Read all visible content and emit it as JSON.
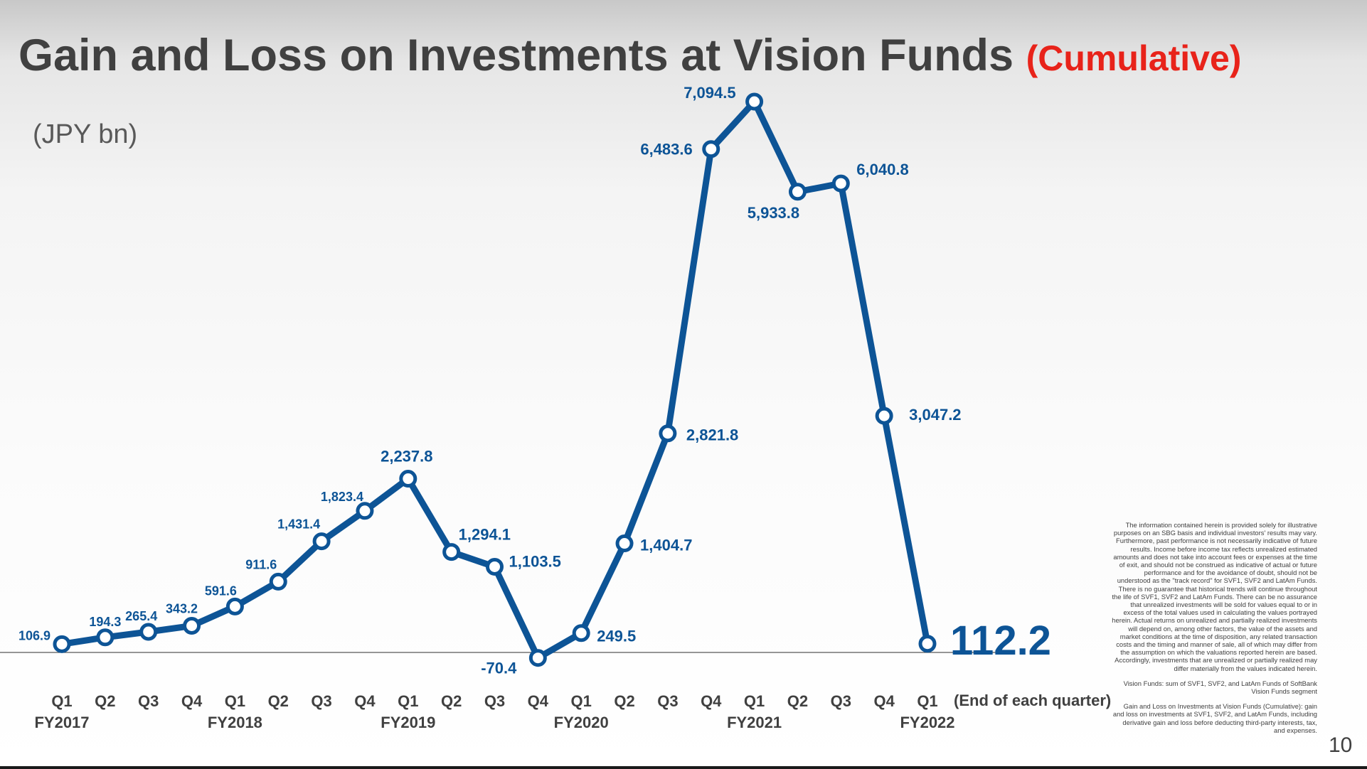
{
  "slide": {
    "title": "Gain and Loss on Investments at Vision Funds",
    "title_suffix": "(Cumulative)",
    "unit": "(JPY bn)",
    "page_number": "10",
    "disclaimer": [
      "The information contained herein is provided solely for illustrative purposes on an SBG basis and individual investors' results may vary. Furthermore, past performance is not necessarily indicative of future results. Income before income tax reflects unrealized estimated amounts and does not take into account fees or expenses at the time of exit, and should not be construed as indicative of actual or future performance and for the avoidance of doubt, should not be understood as the \"track record\" for SVF1, SVF2 and LatAm Funds. There is no guarantee that historical trends will continue throughout the life of SVF1, SVF2 and LatAm Funds. There can be no assurance that unrealized investments will be sold for values equal to or in excess of the total values used in calculating the values portrayed herein. Actual returns on unrealized and partially realized investments will depend on, among other factors, the value of the assets and market conditions at the time of disposition, any related transaction costs and the timing and manner of sale, all of which may differ from the assumption on which the valuations reported herein are based. Accordingly, investments that are unrealized or partially realized may differ materially from the values indicated herein.",
      "Vision Funds: sum of SVF1, SVF2, and LatAm Funds of SoftBank Vision Funds segment",
      "Gain and Loss on Investments at Vision Funds (Cumulative): gain and loss on investments at SVF1, SVF2, and LatAm Funds, including derivative gain and loss before deducting third-party interests, tax, and expenses."
    ]
  },
  "chart_data": {
    "type": "line",
    "title": "Gain and Loss on Investments at Vision Funds (Cumulative)",
    "ylabel": "(JPY bn)",
    "x_note": "(End of each quarter)",
    "ylim": [
      -300,
      7300
    ],
    "grid": false,
    "legend": "none",
    "colors": {
      "line": "#0d5496",
      "marker_fill": "#ffffff",
      "axis": "#404040",
      "baseline": "#595959"
    },
    "fiscal_years": [
      "FY2017",
      "FY2018",
      "FY2019",
      "FY2020",
      "FY2021",
      "FY2022"
    ],
    "categories": [
      "Q1",
      "Q2",
      "Q3",
      "Q4",
      "Q1",
      "Q2",
      "Q3",
      "Q4",
      "Q1",
      "Q2",
      "Q3",
      "Q4",
      "Q1",
      "Q2",
      "Q3",
      "Q4",
      "Q1",
      "Q2",
      "Q3",
      "Q4",
      "Q1"
    ],
    "values": [
      106.9,
      194.3,
      265.4,
      343.2,
      591.6,
      911.6,
      1431.4,
      1823.4,
      2237.8,
      1294.1,
      1103.5,
      -70.4,
      249.5,
      1404.7,
      2821.8,
      6483.6,
      7094.5,
      5933.8,
      6040.8,
      3047.2,
      112.2
    ],
    "data_labels": [
      "106.9",
      "194.3",
      "265.4",
      "343.2",
      "591.6",
      "911.6",
      "1,431.4",
      "1,823.4",
      "2,237.8",
      "1,294.1",
      "1,103.5",
      "-70.4",
      "249.5",
      "1,404.7",
      "2,821.8",
      "6,483.6",
      "7,094.5",
      "5,933.8",
      "6,040.8",
      "3,047.2",
      "112.2"
    ]
  }
}
